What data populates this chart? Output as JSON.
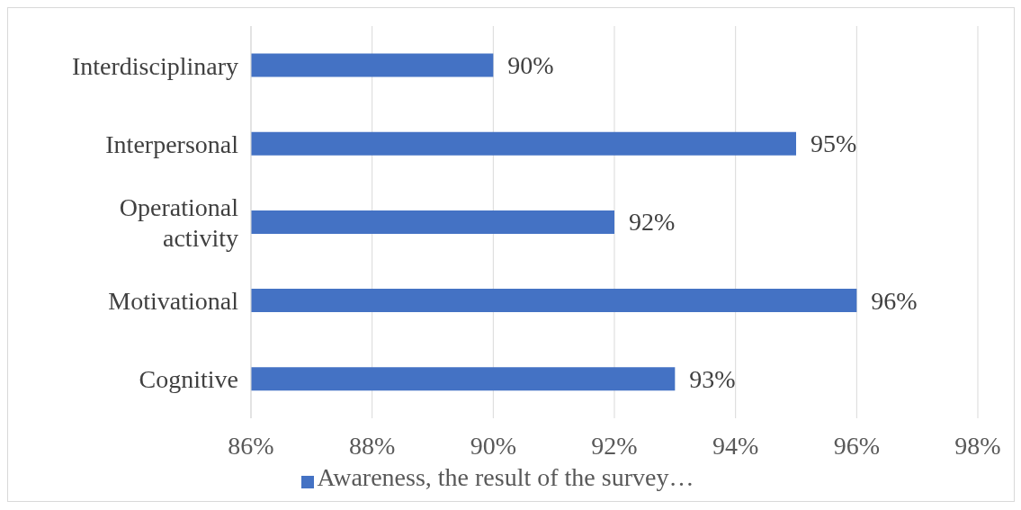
{
  "chart_data": {
    "type": "bar",
    "orientation": "horizontal",
    "categories": [
      "Interdisciplinary",
      "Interpersonal",
      "Operational activity",
      "Motivational",
      "Cognitive"
    ],
    "series": [
      {
        "name": "Awareness, the result of the survey…",
        "color": "#4472c4",
        "values": [
          90,
          95,
          92,
          96,
          93
        ],
        "value_labels": [
          "90%",
          "95%",
          "92%",
          "96%",
          "93%"
        ]
      }
    ],
    "xlim": [
      86,
      98
    ],
    "xticks": [
      {
        "value": 86,
        "label": "86%"
      },
      {
        "value": 88,
        "label": "88%"
      },
      {
        "value": 90,
        "label": "90%"
      },
      {
        "value": 92,
        "label": "92%"
      },
      {
        "value": 94,
        "label": "94%"
      },
      {
        "value": 96,
        "label": "96%"
      },
      {
        "value": 98,
        "label": "98%"
      }
    ],
    "grid": "x",
    "legend": "bottom"
  }
}
